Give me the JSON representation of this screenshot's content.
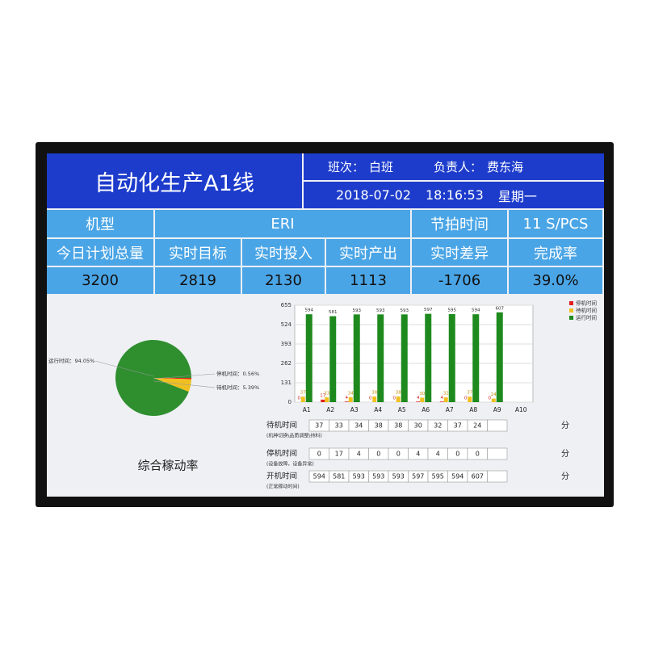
{
  "header": {
    "title": "自动化生产A1线",
    "shift_label": "班次：",
    "shift": "白班",
    "owner_label": "负责人：",
    "owner": "费东海",
    "date": "2018-07-02",
    "time": "18:16:53",
    "weekday": "星期一"
  },
  "info": {
    "row1": [
      "机型",
      "ERI",
      "节拍时间",
      "11 S/PCS"
    ],
    "labels": [
      "今日计划总量",
      "实时目标",
      "实时投入",
      "实时产出",
      "实时差异",
      "完成率"
    ],
    "values": [
      "3200",
      "2819",
      "2130",
      "1113",
      "-1706",
      "39.0%"
    ]
  },
  "chart_data": [
    {
      "type": "pie",
      "title": "综合稼动率",
      "values": [
        94.05,
        0.56,
        5.39
      ],
      "value_labels": [
        "运行时间：94.05%",
        "停机时间：0.56%",
        "待机时间：5.39%"
      ],
      "colors": [
        "#2f8f2f",
        "#e02020",
        "#f0c020"
      ]
    },
    {
      "type": "bar",
      "categories": [
        "A1",
        "A2",
        "A3",
        "A4",
        "A5",
        "A6",
        "A7",
        "A8",
        "A9",
        "A10"
      ],
      "series": [
        {
          "name": "停机时间",
          "color": "#e02020",
          "values": [
            0,
            17,
            4,
            0,
            0,
            4,
            4,
            0,
            0,
            null
          ]
        },
        {
          "name": "待机时间",
          "color": "#f0c020",
          "values": [
            37,
            33,
            34,
            38,
            38,
            30,
            32,
            37,
            24,
            null
          ]
        },
        {
          "name": "运行时间",
          "color": "#1e8a1e",
          "values": [
            594,
            581,
            593,
            593,
            593,
            597,
            595,
            594,
            607,
            null
          ]
        }
      ],
      "ylim": [
        0,
        655
      ],
      "yticks": [
        0,
        131,
        262,
        393,
        524,
        655
      ],
      "grid": true
    }
  ],
  "table": {
    "rows": [
      {
        "label": "待机时间",
        "note": "(机种切换\\品质调整\\待料)",
        "unit": "分"
      },
      {
        "label": "停机时间",
        "note": "(设备故障，设备异常)",
        "unit": "分"
      },
      {
        "label": "开机时间",
        "note": "(正常稼动时间)",
        "unit": "分"
      }
    ]
  }
}
